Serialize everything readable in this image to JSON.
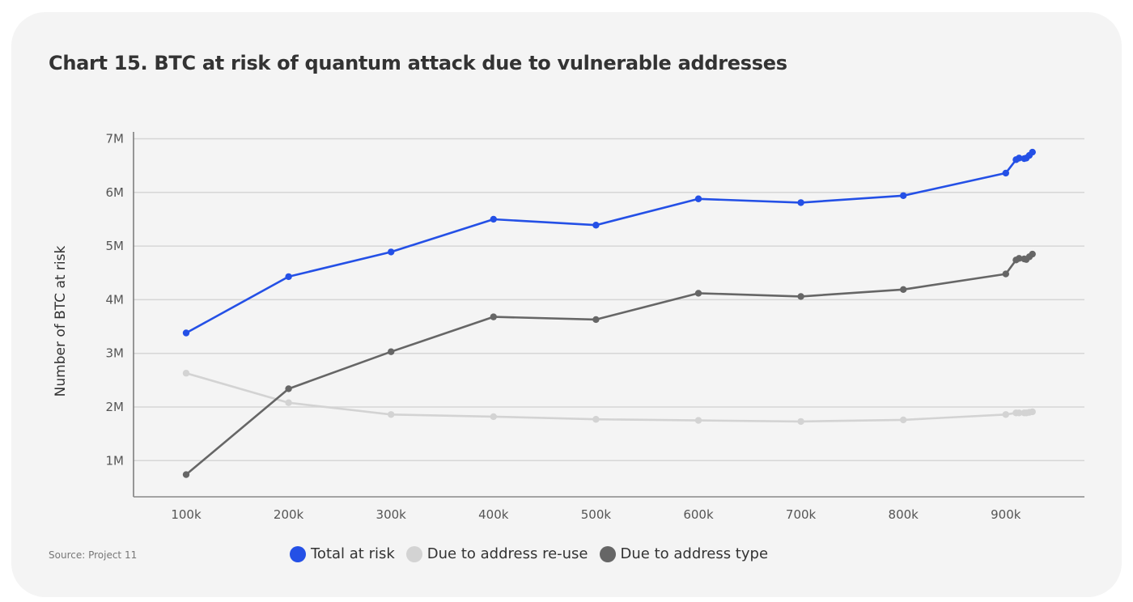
{
  "title": "Chart 15. BTC at risk of quantum attack due to vulnerable addresses",
  "source": "Source: Project 11",
  "chart_data": {
    "type": "line",
    "title": "Chart 15. BTC at risk of quantum attack due to vulnerable addresses",
    "xlabel": "",
    "ylabel": "Number of BTC at risk",
    "xlim": [
      50000,
      980000
    ],
    "ylim": [
      330000,
      7150000
    ],
    "grid": true,
    "legend_position": "bottom",
    "x_ticks": [
      100000,
      200000,
      300000,
      400000,
      500000,
      600000,
      700000,
      800000,
      900000
    ],
    "x_tick_labels": [
      "100k",
      "200k",
      "300k",
      "400k",
      "500k",
      "600k",
      "700k",
      "800k",
      "900k"
    ],
    "y_ticks": [
      1000000,
      2000000,
      3000000,
      4000000,
      5000000,
      6000000,
      7000000
    ],
    "y_tick_labels": [
      "1M",
      "2M",
      "3M",
      "4M",
      "5M",
      "6M",
      "7M"
    ],
    "x": [
      100000,
      200000,
      300000,
      400000,
      500000,
      600000,
      700000,
      800000,
      900000,
      910000,
      913000,
      918000,
      920000,
      923000,
      926000
    ],
    "series": [
      {
        "name": "Total at risk",
        "color": "#2450e6",
        "values": [
          3380000,
          4430000,
          4890000,
          5500000,
          5390000,
          5880000,
          5810000,
          5940000,
          6360000,
          6610000,
          6640000,
          6630000,
          6640000,
          6690000,
          6750000
        ]
      },
      {
        "name": "Due to address re-use",
        "color": "#d3d3d3",
        "values": [
          2630000,
          2080000,
          1860000,
          1820000,
          1770000,
          1750000,
          1730000,
          1760000,
          1860000,
          1890000,
          1890000,
          1890000,
          1890000,
          1900000,
          1910000
        ]
      },
      {
        "name": "Due to address type",
        "color": "#666666",
        "values": [
          740000,
          2340000,
          3030000,
          3680000,
          3630000,
          4120000,
          4060000,
          4190000,
          4480000,
          4740000,
          4770000,
          4760000,
          4750000,
          4800000,
          4850000
        ]
      }
    ]
  }
}
